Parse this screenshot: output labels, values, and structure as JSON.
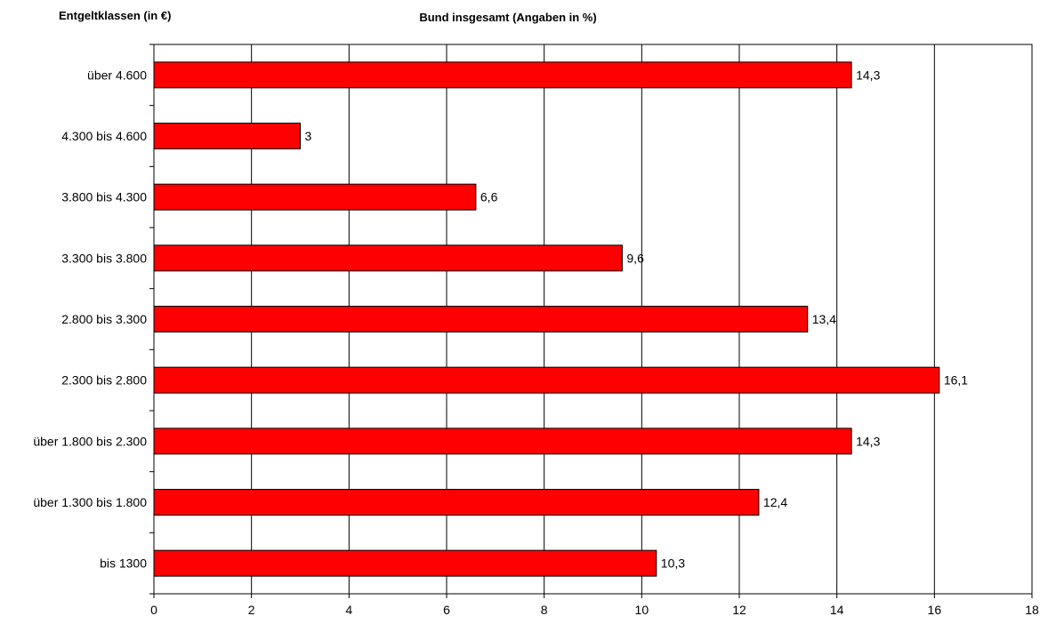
{
  "chart_data": {
    "type": "bar",
    "orientation": "horizontal",
    "y_heading": "Entgeltklassen (in €)",
    "title": "Bund insgesamt (Angaben in %)",
    "categories": [
      "über 4.600",
      "4.300 bis 4.600",
      "3.800 bis 4.300",
      "3.300 bis 3.800",
      "2.800 bis 3.300",
      "2.300 bis 2.800",
      "über 1.800 bis 2.300",
      "über 1.300 bis 1.800",
      "bis 1300"
    ],
    "values": [
      14.3,
      3,
      6.6,
      9.6,
      13.4,
      16.1,
      14.3,
      12.4,
      10.3
    ],
    "value_labels": [
      "14,3",
      "3",
      "6,6",
      "9,6",
      "13,4",
      "16,1",
      "14,3",
      "12,4",
      "10,3"
    ],
    "xlim": [
      0,
      18
    ],
    "xticks": [
      "0",
      "2",
      "4",
      "6",
      "8",
      "10",
      "12",
      "14",
      "16",
      "18"
    ],
    "xtick_values": [
      0,
      2,
      4,
      6,
      8,
      10,
      12,
      14,
      16,
      18
    ],
    "grid": "vertical",
    "bar_color": "#ff0000",
    "legend": "none"
  }
}
